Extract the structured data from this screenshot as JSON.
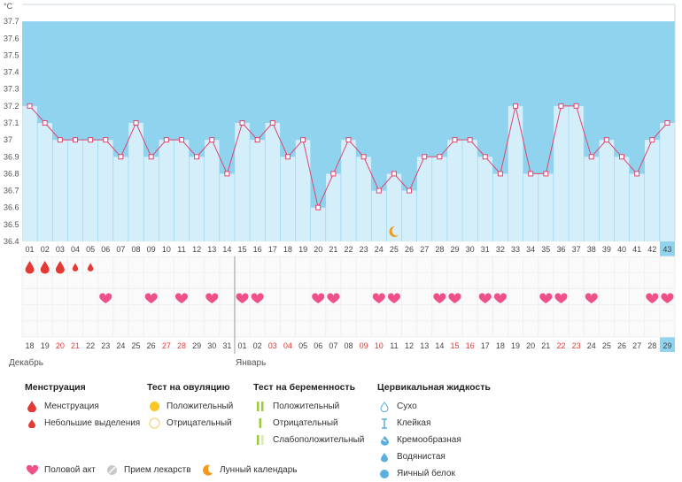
{
  "chart_data": {
    "type": "line",
    "unit": "°C",
    "ylim": [
      36.4,
      37.8
    ],
    "y_ticks": [
      "36.4",
      "36.5",
      "36.6",
      "36.7",
      "36.8",
      "36.9",
      "37",
      "37.1",
      "37.2",
      "37.3",
      "37.4",
      "37.5",
      "37.6",
      "37.7"
    ],
    "cycle_days": [
      "01",
      "02",
      "03",
      "04",
      "05",
      "06",
      "07",
      "08",
      "09",
      "10",
      "11",
      "12",
      "13",
      "14",
      "15",
      "16",
      "17",
      "18",
      "19",
      "20",
      "21",
      "22",
      "23",
      "24",
      "25",
      "26",
      "27",
      "28",
      "29",
      "30",
      "31",
      "32",
      "33",
      "34",
      "35",
      "36",
      "37",
      "38",
      "39",
      "40",
      "41",
      "42",
      "43"
    ],
    "dates": [
      "18",
      "19",
      "20",
      "21",
      "22",
      "23",
      "24",
      "25",
      "26",
      "27",
      "28",
      "29",
      "30",
      "31",
      "01",
      "02",
      "03",
      "04",
      "05",
      "06",
      "07",
      "08",
      "09",
      "10",
      "11",
      "12",
      "13",
      "14",
      "15",
      "16",
      "17",
      "18",
      "19",
      "20",
      "21",
      "22",
      "23",
      "24",
      "25",
      "26",
      "27",
      "28",
      "29"
    ],
    "red_dates_idx": [
      2,
      3,
      9,
      10,
      16,
      17,
      22,
      23,
      28,
      29,
      35,
      36
    ],
    "temperatures": [
      37.2,
      37.1,
      37.0,
      37.0,
      37.0,
      37.0,
      36.9,
      37.1,
      36.9,
      37.0,
      37.0,
      36.9,
      37.0,
      36.8,
      37.1,
      37.0,
      37.1,
      36.9,
      37.0,
      36.6,
      36.8,
      37.0,
      36.9,
      36.7,
      36.8,
      36.7,
      36.9,
      36.9,
      37.0,
      37.0,
      36.9,
      36.8,
      37.2,
      36.8,
      36.8,
      37.2,
      37.2,
      36.9,
      37.0,
      36.9,
      36.8,
      37.0,
      37.1
    ],
    "menstruation": [
      3,
      3,
      3,
      1,
      1
    ],
    "intercourse_idx": [
      5,
      8,
      10,
      12,
      14,
      15,
      19,
      20,
      23,
      24,
      27,
      28,
      30,
      31,
      34,
      35,
      37,
      41,
      42
    ],
    "moon_idx": 24,
    "months": [
      "Декабрь",
      "Январь"
    ],
    "month_split_idx": 14,
    "current_idx": 42
  },
  "legend": {
    "menstruation": {
      "title": "Менструация",
      "items": [
        "Менструация",
        "Небольшие выделения"
      ]
    },
    "ovulation": {
      "title": "Тест на овуляцию",
      "items": [
        "Положительный",
        "Отрицательный"
      ]
    },
    "pregnancy": {
      "title": "Тест на беременность",
      "items": [
        "Положительный",
        "Отрицательный",
        "Слабоположительный"
      ]
    },
    "cervical": {
      "title": "Цервикальная жидкость",
      "items": [
        "Сухо",
        "Клейкая",
        "Кремообразная",
        "Водянистая",
        "Яичный белок"
      ]
    },
    "bottom": [
      "Половой акт",
      "Прием лекарств",
      "Лунный календарь"
    ]
  },
  "colors": {
    "sky": "#8fd3ef",
    "bar": "#d4eefa",
    "line": "#e0456e",
    "pink": "#f0508a",
    "red": "#e53935",
    "moon": "#f39a1d",
    "current": "#8fd3ef"
  }
}
